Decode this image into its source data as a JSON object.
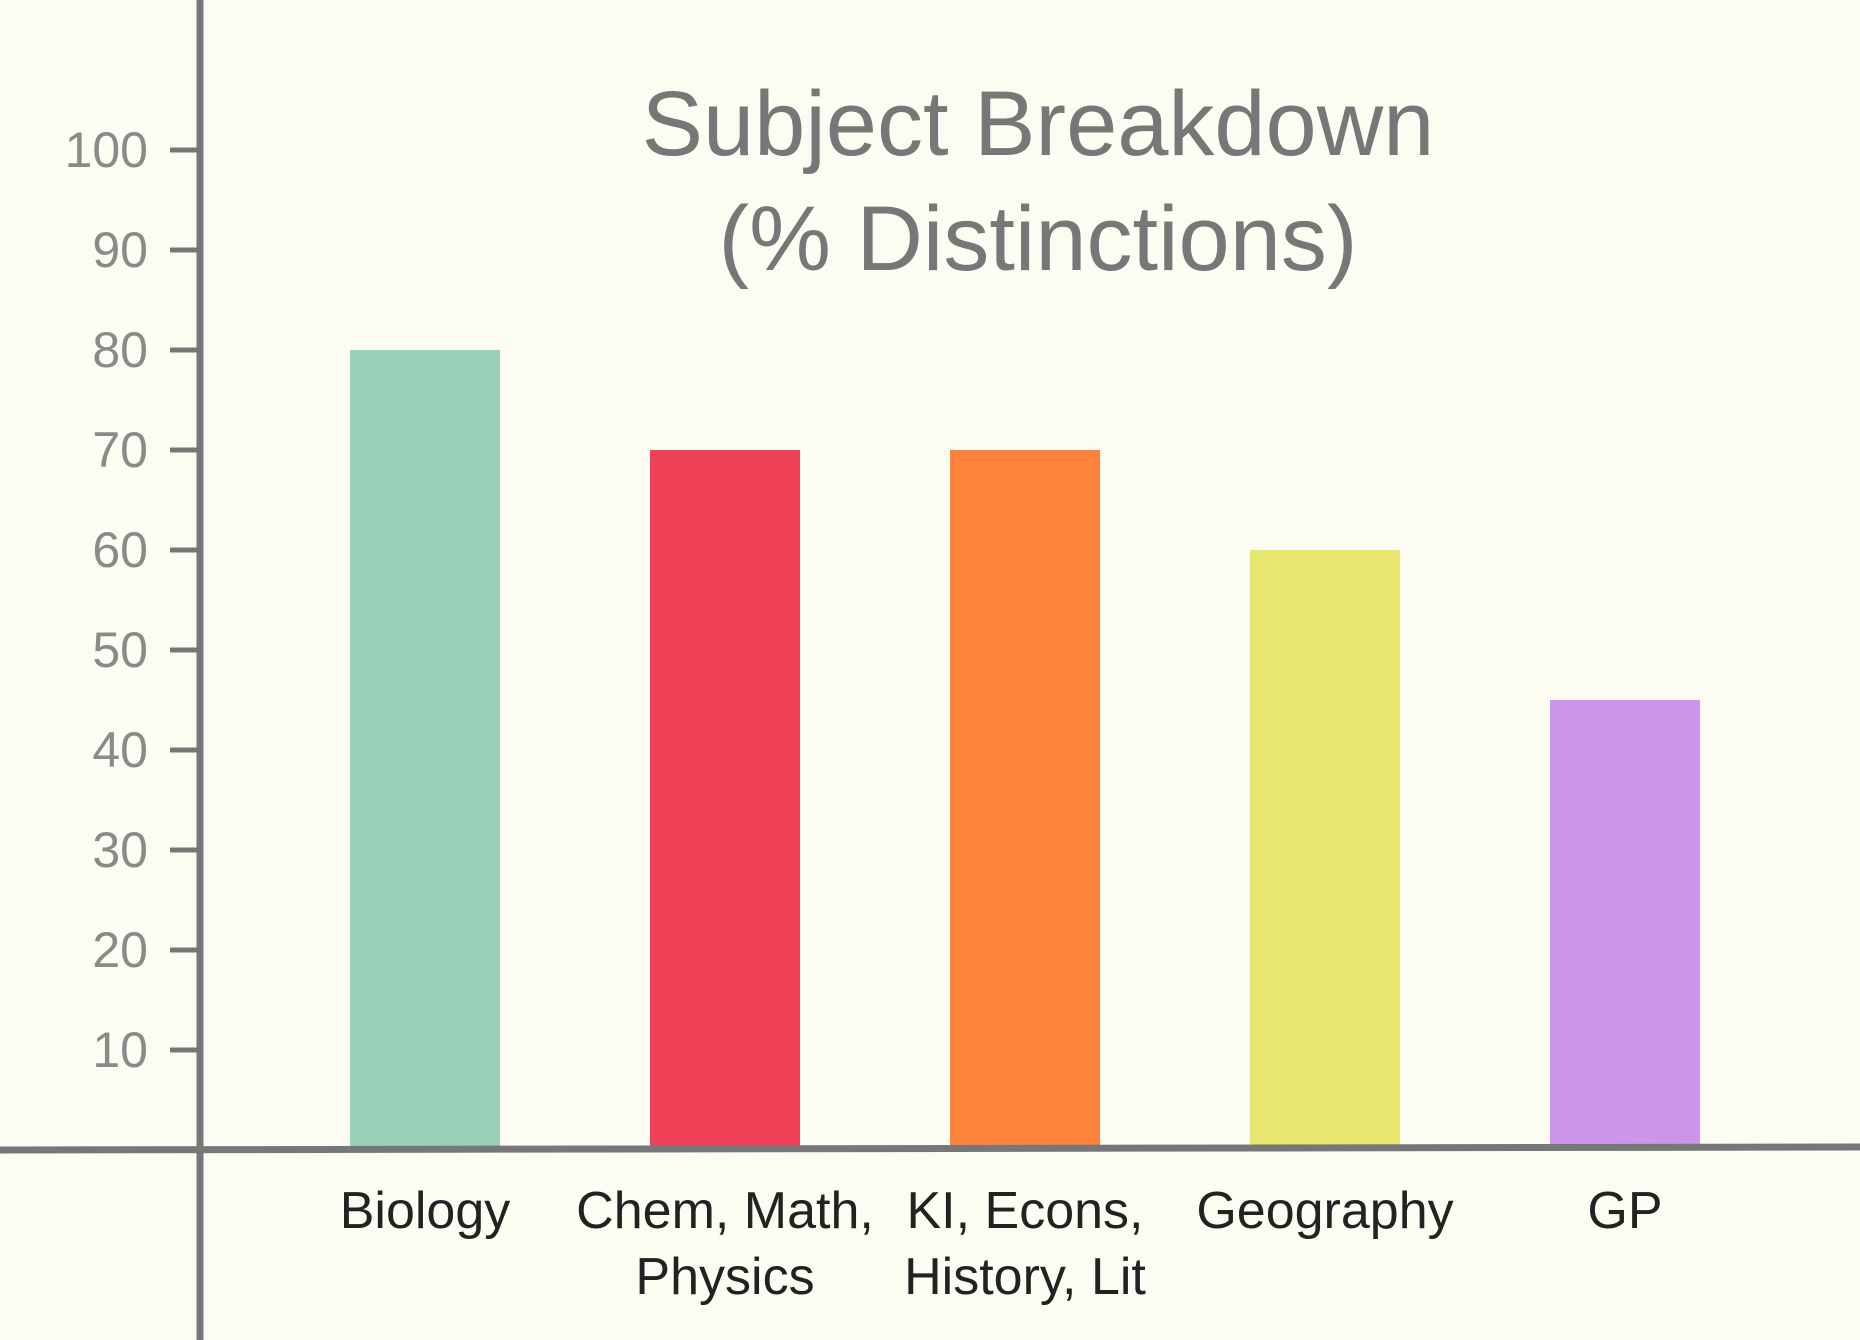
{
  "chart_data": {
    "type": "bar",
    "title": [
      "Subject Breakdown",
      "(% Distinctions)"
    ],
    "xlabel": "",
    "ylabel": "",
    "categories": [
      [
        "Biology"
      ],
      [
        "Chem, Math,",
        "Physics"
      ],
      [
        "KI, Econs,",
        "History, Lit"
      ],
      [
        "Geography"
      ],
      [
        "GP"
      ]
    ],
    "values": [
      80,
      70,
      70,
      60,
      45
    ],
    "colors": [
      "#98d0b8",
      "#ef4157",
      "#fd823c",
      "#e7e66e",
      "#cd95e8"
    ],
    "ylim": [
      0,
      100
    ],
    "yticks": [
      10,
      20,
      30,
      40,
      50,
      60,
      70,
      80,
      90,
      100
    ],
    "grid": false,
    "legend": "none",
    "axis_color": "#777777"
  }
}
